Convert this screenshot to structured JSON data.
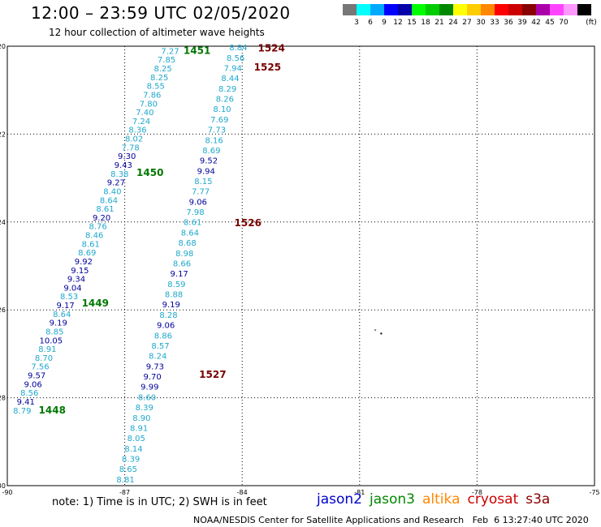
{
  "header": {
    "title": "12:00 – 23:59 UTC 02/05/2020",
    "subtitle": "12 hour collection of altimeter wave heights"
  },
  "legend": {
    "unit": "(ft)",
    "swatches": [
      {
        "color": "#777777",
        "label": ""
      },
      {
        "color": "#00ffff",
        "label": "3"
      },
      {
        "color": "#00aaff",
        "label": "6"
      },
      {
        "color": "#0000ff",
        "label": "9"
      },
      {
        "color": "#0000aa",
        "label": "12"
      },
      {
        "color": "#00ff00",
        "label": "15"
      },
      {
        "color": "#00cc00",
        "label": "18"
      },
      {
        "color": "#008800",
        "label": "21"
      },
      {
        "color": "#ffff00",
        "label": "24"
      },
      {
        "color": "#ffcc00",
        "label": "27"
      },
      {
        "color": "#ff8800",
        "label": "30"
      },
      {
        "color": "#ff0000",
        "label": "33"
      },
      {
        "color": "#cc0000",
        "label": "36"
      },
      {
        "color": "#880000",
        "label": "39"
      },
      {
        "color": "#aa00aa",
        "label": "42"
      },
      {
        "color": "#ff44ff",
        "label": "45"
      },
      {
        "color": "#ff99ff",
        "label": "70"
      },
      {
        "color": "#000000",
        "label": ""
      }
    ]
  },
  "map": {
    "lon_range": [
      -90,
      -75
    ],
    "lat_range": [
      -30,
      -20
    ],
    "lon_ticks": [
      "-90",
      "-87",
      "-84",
      "-81",
      "-78",
      "-75"
    ],
    "lat_ticks": [
      "-20",
      "-22",
      "-24",
      "-26",
      "-28",
      "-30"
    ],
    "lon_tick_values": [
      -90,
      -87,
      -84,
      -81,
      -78,
      -75
    ],
    "lat_tick_values": [
      -20,
      -22,
      -24,
      -26,
      -28,
      -30
    ],
    "colors": {
      "light": "#1fa8cc",
      "dark": "#00009c",
      "time_green": "#007700",
      "time_red": "#770000"
    },
    "track_a_values": [
      "8.79",
      "9.41",
      "8.56",
      "9.06",
      "9.57",
      "7.56",
      "8.70",
      "8.91",
      "10.05",
      "8.85",
      "9.19",
      "8.64",
      "9.17",
      "8.53",
      "9.04",
      "9.34",
      "9.15",
      "9.92",
      "8.69",
      "8.61",
      "8.46",
      "8.76",
      "9.20",
      "8.61",
      "8.64",
      "8.40",
      "9.27",
      "8.38",
      "9.43",
      "9.30",
      "7.78",
      "8.02",
      "8.36",
      "7.24",
      "7.40",
      "7.80",
      "7.86",
      "8.55",
      "8.25",
      "8.25",
      "7.85",
      "7.27"
    ],
    "track_a_dark": [
      false,
      true,
      false,
      true,
      true,
      false,
      false,
      false,
      true,
      false,
      true,
      false,
      true,
      false,
      true,
      true,
      true,
      true,
      false,
      false,
      false,
      false,
      true,
      false,
      false,
      false,
      true,
      false,
      true,
      true,
      false,
      false,
      false,
      false,
      false,
      false,
      false,
      false,
      false,
      false,
      false,
      false
    ],
    "track_a_times": [
      {
        "label": "1448",
        "lon": -89.2,
        "lat": -28.28
      },
      {
        "label": "1449",
        "lon": -88.1,
        "lat": -25.85
      },
      {
        "label": "1450",
        "lon": -86.7,
        "lat": -22.88
      },
      {
        "label": "1451",
        "lon": -85.5,
        "lat": -20.1
      }
    ],
    "track_b_values": [
      "8.81",
      "8.65",
      "8.39",
      "8.14",
      "8.05",
      "8.91",
      "8.90",
      "8.39",
      "8.60",
      "9.99",
      "9.70",
      "9.73",
      "8.24",
      "8.57",
      "8.86",
      "9.06",
      "8.28",
      "9.19",
      "8.88",
      "8.59",
      "9.17",
      "8.66",
      "8.98",
      "8.68",
      "8.64",
      "8.61",
      "7.98",
      "9.06",
      "7.77",
      "8.15",
      "9.94",
      "9.52",
      "8.69",
      "8.16",
      "7.73",
      "7.69",
      "8.10",
      "8.26",
      "8.29",
      "8.44",
      "7.94",
      "8.56",
      "8.84"
    ],
    "track_b_dark": [
      false,
      false,
      false,
      false,
      false,
      false,
      false,
      false,
      false,
      true,
      true,
      true,
      false,
      false,
      false,
      true,
      false,
      true,
      false,
      false,
      true,
      false,
      false,
      false,
      false,
      false,
      false,
      true,
      false,
      false,
      true,
      true,
      false,
      false,
      false,
      false,
      false,
      false,
      false,
      false,
      false,
      false,
      false
    ],
    "track_b_times": [
      {
        "label": "1524",
        "lon": -83.6,
        "lat": -20.05
      },
      {
        "label": "1525",
        "lon": -83.7,
        "lat": -20.48
      },
      {
        "label": "1526",
        "lon": -84.2,
        "lat": -24.02
      },
      {
        "label": "1527",
        "lon": -85.1,
        "lat": -27.47
      }
    ]
  },
  "footer": {
    "note": "note:  1) Time is in UTC;  2) SWH is in feet",
    "satellites": [
      {
        "name": "jason2",
        "color": "#0000cc"
      },
      {
        "name": "jason3",
        "color": "#008800"
      },
      {
        "name": "altika",
        "color": "#ff8800"
      },
      {
        "name": "cryosat",
        "color": "#cc0000"
      },
      {
        "name": "s3a",
        "color": "#880000"
      }
    ],
    "credit": "NOAA/NESDIS Center for Satellite Applications and Research",
    "timestamp": "Feb  6 13:27:40 UTC 2020"
  }
}
